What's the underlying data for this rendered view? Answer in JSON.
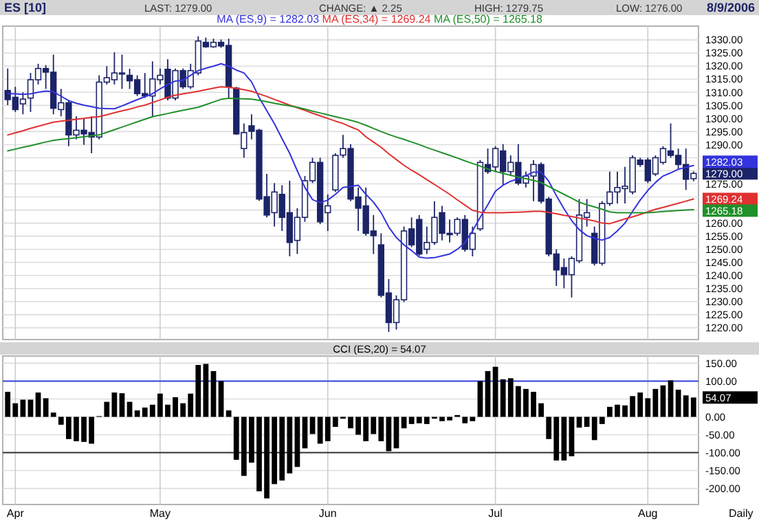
{
  "chart_data": [
    {
      "type": "candlestick",
      "title": "ES [10]",
      "annotations": [
        "LAST: 1279.00",
        "CHANGE: ▲ 2.25",
        "HIGH: 1279.75",
        "LOW: 1276.00",
        "8/9/2006",
        "1279.00"
      ],
      "categories": [
        null,
        null,
        null,
        null,
        null,
        null,
        null,
        null,
        null,
        null,
        null,
        null,
        null,
        null,
        null,
        null,
        null,
        null,
        null,
        null,
        null,
        null,
        null,
        null,
        null,
        null,
        null,
        null,
        null,
        null,
        null,
        null,
        null,
        null,
        null,
        null,
        null,
        null,
        null,
        null,
        null,
        null,
        null,
        null,
        null,
        null,
        null,
        null,
        null,
        null,
        null,
        null,
        null,
        null,
        null,
        null,
        null,
        null,
        null,
        null,
        null,
        null,
        null,
        null,
        null,
        null,
        null,
        null,
        null,
        null,
        null,
        null,
        null,
        null,
        null,
        null,
        null,
        null,
        null,
        null,
        null,
        null,
        null,
        null,
        null,
        null,
        null,
        null,
        null,
        null,
        null
      ],
      "ohlc": [
        [
          1310.7,
          1319.1,
          1305.1,
          1307.2
        ],
        [
          1308.1,
          1312.1,
          1302.5,
          1303.4
        ],
        [
          1305.6,
          1310,
          1301.6,
          1307.4
        ],
        [
          1307.8,
          1317.4,
          1302.5,
          1314.8
        ],
        [
          1314.8,
          1320.9,
          1313,
          1319.1
        ],
        [
          1319.1,
          1320.4,
          1311.3,
          1317.7
        ],
        [
          1317.7,
          1324.4,
          1301.6,
          1303.9
        ],
        [
          1303.4,
          1311.3,
          1300.8,
          1306
        ],
        [
          1306,
          1306.9,
          1289.4,
          1293.7
        ],
        [
          1293.7,
          1300.8,
          1292,
          1295.5
        ],
        [
          1295.5,
          1299.9,
          1289.9,
          1294.1
        ],
        [
          1294.6,
          1300.8,
          1286.7,
          1292.9
        ],
        [
          1292.9,
          1316.5,
          1292,
          1313.9
        ],
        [
          1313.9,
          1320,
          1313,
          1315.6
        ],
        [
          1314.8,
          1325.3,
          1313,
          1317.4
        ],
        [
          1317.4,
          1324.4,
          1311.3,
          1317
        ],
        [
          1316.5,
          1319,
          1311.3,
          1314.4
        ],
        [
          1314.8,
          1316.5,
          1308.6,
          1309.5
        ],
        [
          1309.5,
          1317.4,
          1307.8,
          1308.6
        ],
        [
          1308.6,
          1321.8,
          1300.8,
          1315.1
        ],
        [
          1314.8,
          1319.1,
          1313,
          1316.5
        ],
        [
          1318.8,
          1322.6,
          1306.9,
          1307.8
        ],
        [
          1307.8,
          1319.1,
          1306.9,
          1318.3
        ],
        [
          1318.3,
          1319.1,
          1311.3,
          1312.1
        ],
        [
          1312.1,
          1320.9,
          1311.3,
          1318.3
        ],
        [
          1317.4,
          1331.4,
          1316.5,
          1329.6
        ],
        [
          1329.1,
          1330.9,
          1327,
          1327.4
        ],
        [
          1327.4,
          1330.5,
          1327,
          1329.1
        ],
        [
          1329.1,
          1330.2,
          1327,
          1327.7
        ],
        [
          1327.9,
          1330.5,
          1307.8,
          1312.1
        ],
        [
          1311.6,
          1312.1,
          1293.7,
          1294.1
        ],
        [
          1288.5,
          1298.1,
          1285,
          1294.6
        ],
        [
          1297.2,
          1301.6,
          1292,
          1295.1
        ],
        [
          1295.5,
          1296,
          1268.5,
          1269.2
        ],
        [
          1270.1,
          1278.8,
          1262.2,
          1263.1
        ],
        [
          1264,
          1275.3,
          1258.7,
          1271.9
        ],
        [
          1271,
          1274.5,
          1257,
          1262.2
        ],
        [
          1264,
          1276.2,
          1247.3,
          1252.6
        ],
        [
          1253.4,
          1265.7,
          1248.2,
          1262.2
        ],
        [
          1262.2,
          1278,
          1260.5,
          1276.2
        ],
        [
          1276.2,
          1285,
          1275.3,
          1283.2
        ],
        [
          1283.2,
          1285,
          1259.6,
          1260.5
        ],
        [
          1264,
          1271,
          1257,
          1266.6
        ],
        [
          1272.7,
          1286.7,
          1271.9,
          1285.9
        ],
        [
          1286,
          1293.7,
          1285,
          1288.5
        ],
        [
          1288.5,
          1290.2,
          1268.4,
          1269.2
        ],
        [
          1270,
          1273.6,
          1257,
          1265.7
        ],
        [
          1266.6,
          1273.6,
          1255.2,
          1256.1
        ],
        [
          1257,
          1263.1,
          1248.2,
          1255.2
        ],
        [
          1251.7,
          1256.1,
          1231.6,
          1232.4
        ],
        [
          1233.3,
          1238.6,
          1218.4,
          1222
        ],
        [
          1222,
          1232.4,
          1219.3,
          1230.7
        ],
        [
          1230.7,
          1258.7,
          1229.8,
          1257
        ],
        [
          1257.8,
          1262.2,
          1250.8,
          1251.7
        ],
        [
          1261.4,
          1263.1,
          1247.5,
          1248.2
        ],
        [
          1250,
          1258.7,
          1248.2,
          1252.6
        ],
        [
          1252.6,
          1268.4,
          1251.7,
          1262.2
        ],
        [
          1264,
          1266.6,
          1253.4,
          1256.1
        ],
        [
          1256.1,
          1261.4,
          1252.6,
          1255.6
        ],
        [
          1256.1,
          1262.2,
          1255.2,
          1261.4
        ],
        [
          1261.4,
          1263.1,
          1249.1,
          1250
        ],
        [
          1250,
          1258.7,
          1247.3,
          1256.1
        ],
        [
          1257.8,
          1284.1,
          1257,
          1283.2
        ],
        [
          1282.4,
          1288.5,
          1278.8,
          1279.7
        ],
        [
          1281.5,
          1289.4,
          1279.7,
          1288.5
        ],
        [
          1287.6,
          1290.2,
          1274.5,
          1279.7
        ],
        [
          1279.7,
          1285.9,
          1278,
          1283.2
        ],
        [
          1283.2,
          1290.2,
          1274.5,
          1275.3
        ],
        [
          1275.3,
          1279.7,
          1273.6,
          1278
        ],
        [
          1278,
          1284.1,
          1268.4,
          1282.4
        ],
        [
          1282.4,
          1283.2,
          1267.5,
          1268.4
        ],
        [
          1269.2,
          1270,
          1247.3,
          1248.2
        ],
        [
          1248.2,
          1250,
          1236,
          1242.1
        ],
        [
          1243,
          1246.5,
          1235.1,
          1240.3
        ],
        [
          1240.3,
          1247.3,
          1231.6,
          1246.5
        ],
        [
          1245.6,
          1269.2,
          1244.7,
          1263.1
        ],
        [
          1262.2,
          1269.2,
          1258.7,
          1264
        ],
        [
          1256.1,
          1258.7,
          1243.8,
          1244.7
        ],
        [
          1244.7,
          1268.4,
          1243.8,
          1267.5
        ],
        [
          1267.5,
          1279.7,
          1266.6,
          1271.9
        ],
        [
          1271.9,
          1279.7,
          1267.5,
          1273.6
        ],
        [
          1273.2,
          1281.5,
          1267.5,
          1274.1
        ],
        [
          1271.9,
          1285.9,
          1271,
          1285
        ],
        [
          1284.1,
          1285,
          1281.5,
          1282.4
        ],
        [
          1284.1,
          1285,
          1275.3,
          1276.2
        ],
        [
          1278.8,
          1285.9,
          1278,
          1285
        ],
        [
          1283.2,
          1289.4,
          1282.4,
          1288.5
        ],
        [
          1287.6,
          1298.1,
          1285,
          1285.9
        ],
        [
          1285.9,
          1288.5,
          1280.6,
          1282.4
        ],
        [
          1282.4,
          1288.5,
          1272.7,
          1276.75
        ],
        [
          1277,
          1279.75,
          1276,
          1279
        ]
      ],
      "series": [
        {
          "type": "line",
          "name": "MA (ES,9) = 1282.03",
          "color": "#3333dd",
          "values": [
            1309.5,
            1309.4,
            1309.2,
            1309.4,
            1310,
            1310.5,
            1310.2,
            1308.5,
            1306.8,
            1305.8,
            1305.1,
            1304.5,
            1303.9,
            1303.8,
            1303.7,
            1304.8,
            1306,
            1307.2,
            1308.3,
            1309.5,
            1311.3,
            1313,
            1314.3,
            1314.6,
            1316.5,
            1318.3,
            1319.2,
            1320,
            1320.9,
            1320,
            1318.5,
            1317.4,
            1314,
            1308,
            1303,
            1298,
            1292.3,
            1286.7,
            1280,
            1273.6,
            1269,
            1267.8,
            1268.8,
            1271,
            1273.6,
            1274,
            1274.5,
            1271,
            1268,
            1264,
            1258.5,
            1254.5,
            1251.7,
            1249.5,
            1247,
            1246.6,
            1246.8,
            1247.5,
            1248.2,
            1250,
            1252.5,
            1257,
            1262.2,
            1267,
            1272.2,
            1274.5,
            1276,
            1277,
            1278.2,
            1279.5,
            1279.5,
            1276,
            1270.5,
            1265.5,
            1261,
            1257.5,
            1255.2,
            1254.2,
            1253.5,
            1254.5,
            1257,
            1260,
            1264.5,
            1268.8,
            1272.5,
            1275.5,
            1278,
            1279.2,
            1280.6,
            1281.3,
            1282.03
          ],
          "value_labels": [
            null,
            null,
            null,
            null,
            null,
            null,
            null,
            null,
            null,
            null,
            null,
            null,
            null,
            null,
            null,
            null,
            null,
            null,
            null,
            null,
            null,
            null,
            null,
            null,
            null,
            null,
            null,
            null,
            null,
            null,
            null,
            null,
            null,
            null,
            null,
            null,
            null,
            null,
            null,
            null,
            null,
            null,
            null,
            null,
            null,
            null,
            null,
            null,
            null,
            null,
            null,
            null,
            null,
            null,
            null,
            null,
            null,
            null,
            null,
            null,
            null,
            null,
            null,
            null,
            null,
            null,
            null,
            null,
            null,
            null,
            null,
            null,
            null,
            null,
            null,
            null,
            null,
            null,
            null,
            null,
            null,
            null,
            null,
            null,
            null,
            null,
            null,
            null,
            null,
            null,
            "1282.03"
          ]
        },
        {
          "type": "line",
          "name": "MA (ES,34) = 1269.24",
          "color": "#e03030",
          "values": [
            1293.7,
            1294.5,
            1295.3,
            1296.2,
            1297,
            1297.8,
            1298.6,
            1299,
            1299.3,
            1299.7,
            1300,
            1300.4,
            1300.7,
            1301.4,
            1302.2,
            1302.9,
            1303.6,
            1304.4,
            1305.1,
            1306.1,
            1307.1,
            1308.1,
            1308.9,
            1309.4,
            1309.9,
            1310.4,
            1311,
            1311.6,
            1312.1,
            1311.9,
            1311.5,
            1311,
            1310.4,
            1309.4,
            1308.4,
            1307.3,
            1306.2,
            1305.1,
            1304.1,
            1303.1,
            1302,
            1301,
            1300,
            1299,
            1298.1,
            1296.8,
            1295.6,
            1293,
            1291,
            1289,
            1286.5,
            1284.3,
            1282.1,
            1280.2,
            1278.5,
            1276.6,
            1274.8,
            1272.9,
            1271,
            1268.9,
            1266.9,
            1264.9,
            1264.2,
            1264,
            1264,
            1264,
            1264.1,
            1264.2,
            1264.3,
            1264.5,
            1264.5,
            1264.1,
            1263.6,
            1263,
            1262.5,
            1261.9,
            1261.4,
            1260.8,
            1260,
            1259.8,
            1260.7,
            1261.6,
            1262.4,
            1263.3,
            1264.3,
            1265.3,
            1266,
            1266.8,
            1267.6,
            1268.4,
            1269.24
          ],
          "value_labels": [
            null,
            null,
            null,
            null,
            null,
            null,
            null,
            null,
            null,
            null,
            null,
            null,
            null,
            null,
            null,
            null,
            null,
            null,
            null,
            null,
            null,
            null,
            null,
            null,
            null,
            null,
            null,
            null,
            null,
            null,
            null,
            null,
            null,
            null,
            null,
            null,
            null,
            null,
            null,
            null,
            null,
            null,
            null,
            null,
            null,
            null,
            null,
            null,
            null,
            null,
            null,
            null,
            null,
            null,
            null,
            null,
            null,
            null,
            null,
            null,
            null,
            null,
            null,
            null,
            null,
            null,
            null,
            null,
            null,
            null,
            null,
            null,
            null,
            null,
            null,
            null,
            null,
            null,
            null,
            null,
            null,
            null,
            null,
            null,
            null,
            null,
            null,
            null,
            null,
            null,
            "1269.24"
          ]
        },
        {
          "type": "line",
          "name": "MA (ES,50) = 1265.18",
          "color": "#20902a",
          "values": [
            1287.6,
            1288.3,
            1289,
            1289.6,
            1290.3,
            1291,
            1291.6,
            1292,
            1292.3,
            1292.7,
            1293,
            1293.4,
            1293.7,
            1294.7,
            1295.7,
            1296.7,
            1297.7,
            1298.7,
            1299.7,
            1300.7,
            1301.3,
            1301.9,
            1302.5,
            1303.1,
            1303.7,
            1304.3,
            1305.3,
            1306.3,
            1307.3,
            1307.7,
            1307.6,
            1307.5,
            1307.4,
            1306.9,
            1306.4,
            1305.8,
            1305.3,
            1304.8,
            1304.3,
            1303.6,
            1302.8,
            1302.1,
            1301.4,
            1300.7,
            1300,
            1299.3,
            1298.5,
            1297.4,
            1296.2,
            1295,
            1293.9,
            1292.9,
            1292,
            1291,
            1290,
            1288.9,
            1287.9,
            1286.9,
            1285.9,
            1284.9,
            1283.8,
            1282.8,
            1281.8,
            1280.7,
            1279.7,
            1279,
            1278.3,
            1277.6,
            1277,
            1276.3,
            1275.5,
            1274,
            1272.5,
            1271,
            1269.5,
            1268,
            1267,
            1266.2,
            1265.3,
            1264.3,
            1264,
            1264,
            1264,
            1264,
            1264,
            1264.2,
            1264.4,
            1264.6,
            1264.8,
            1265,
            1265.18
          ],
          "value_labels": [
            null,
            null,
            null,
            null,
            null,
            null,
            null,
            null,
            null,
            null,
            null,
            null,
            null,
            null,
            null,
            null,
            null,
            null,
            null,
            null,
            null,
            null,
            null,
            null,
            null,
            null,
            null,
            null,
            null,
            null,
            null,
            null,
            null,
            null,
            null,
            null,
            null,
            null,
            null,
            null,
            null,
            null,
            null,
            null,
            null,
            null,
            null,
            null,
            null,
            null,
            null,
            null,
            null,
            null,
            null,
            null,
            null,
            null,
            null,
            null,
            null,
            null,
            null,
            null,
            null,
            null,
            null,
            null,
            null,
            null,
            null,
            null,
            null,
            null,
            null,
            null,
            null,
            null,
            null,
            null,
            null,
            null,
            null,
            null,
            null,
            null,
            null,
            null,
            null,
            null,
            "1265.18"
          ]
        }
      ],
      "ylim": [
        1215.5,
        1335.3
      ],
      "yticks": [
        {
          "value": 1220,
          "label": "1220.00"
        },
        {
          "value": 1225,
          "label": "1225.00"
        },
        {
          "value": 1230,
          "label": "1230.00"
        },
        {
          "value": 1235,
          "label": "1235.00"
        },
        {
          "value": 1240,
          "label": "1240.00"
        },
        {
          "value": 1245,
          "label": "1245.00"
        },
        {
          "value": 1250,
          "label": "1250.00"
        },
        {
          "value": 1255,
          "label": "1255.00"
        },
        {
          "value": 1260,
          "label": "1260.00"
        },
        {
          "value": 1265,
          "label": null
        },
        {
          "value": 1270,
          "label": null
        },
        {
          "value": 1275,
          "label": "1275.00"
        },
        {
          "value": 1280,
          "label": null
        },
        {
          "value": 1285,
          "label": null
        },
        {
          "value": 1290,
          "label": "1290.00"
        },
        {
          "value": 1295,
          "label": "1295.00"
        },
        {
          "value": 1300,
          "label": "1300.00"
        },
        {
          "value": 1305,
          "label": "1305.00"
        },
        {
          "value": 1310,
          "label": "1310.00"
        },
        {
          "value": 1315,
          "label": "1315.00"
        },
        {
          "value": 1320,
          "label": "1320.00"
        },
        {
          "value": 1325,
          "label": "1325.00"
        },
        {
          "value": 1330,
          "label": "1330.00"
        }
      ],
      "grid": true,
      "legend": "top"
    },
    {
      "type": "bar",
      "title": "CCI (ES,20) = 54.07",
      "annotations": [
        "Daily",
        "54.07"
      ],
      "categories": [
        null,
        "Apr",
        null,
        null,
        null,
        null,
        null,
        null,
        null,
        null,
        null,
        null,
        null,
        null,
        null,
        null,
        null,
        null,
        null,
        null,
        "May",
        null,
        null,
        null,
        null,
        null,
        null,
        null,
        null,
        null,
        null,
        null,
        null,
        null,
        null,
        null,
        null,
        null,
        null,
        null,
        null,
        null,
        "Jun",
        null,
        null,
        null,
        null,
        null,
        null,
        null,
        null,
        null,
        null,
        null,
        null,
        null,
        null,
        null,
        null,
        null,
        null,
        null,
        null,
        null,
        "Jul",
        null,
        null,
        null,
        null,
        null,
        null,
        null,
        null,
        null,
        null,
        null,
        null,
        null,
        null,
        null,
        null,
        null,
        null,
        null,
        "Aug",
        null,
        null,
        null,
        null,
        null,
        null
      ],
      "values": [
        70,
        38,
        48,
        48,
        68,
        52,
        12,
        -22,
        -62,
        -68,
        -70,
        -75,
        2,
        42,
        68,
        66,
        42,
        18,
        26,
        34,
        65,
        34,
        55,
        38,
        65,
        145,
        148,
        128,
        100,
        18,
        -120,
        -165,
        -128,
        -208,
        -228,
        -188,
        -178,
        -158,
        -140,
        -88,
        -48,
        -75,
        -68,
        -28,
        -5,
        -32,
        -50,
        -68,
        -48,
        -68,
        -96,
        -88,
        -32,
        -20,
        -18,
        -20,
        -5,
        -12,
        -10,
        5,
        -18,
        -12,
        100,
        128,
        140,
        105,
        108,
        86,
        78,
        70,
        38,
        -62,
        -122,
        -122,
        -110,
        -30,
        -28,
        -65,
        -20,
        28,
        34,
        32,
        58,
        68,
        52,
        78,
        88,
        102,
        76,
        60,
        54.07
      ],
      "color": "#000000",
      "ylim": [
        -245,
        170
      ],
      "yticks": [
        {
          "value": -200,
          "label": "-200.00"
        },
        {
          "value": -150,
          "label": "-150.00"
        },
        {
          "value": -100,
          "label": "-100.00"
        },
        {
          "value": -50,
          "label": "-50.00"
        },
        {
          "value": 0,
          "label": "0.00"
        },
        {
          "value": 50,
          "label": null
        },
        {
          "value": 100,
          "label": "100.00"
        },
        {
          "value": 150,
          "label": "150.00"
        }
      ],
      "ref_lines": [
        {
          "axis": "y",
          "value": 100,
          "color": "#3344dd"
        },
        {
          "axis": "y",
          "value": -100,
          "color": "#333333"
        }
      ],
      "grid": true
    }
  ]
}
